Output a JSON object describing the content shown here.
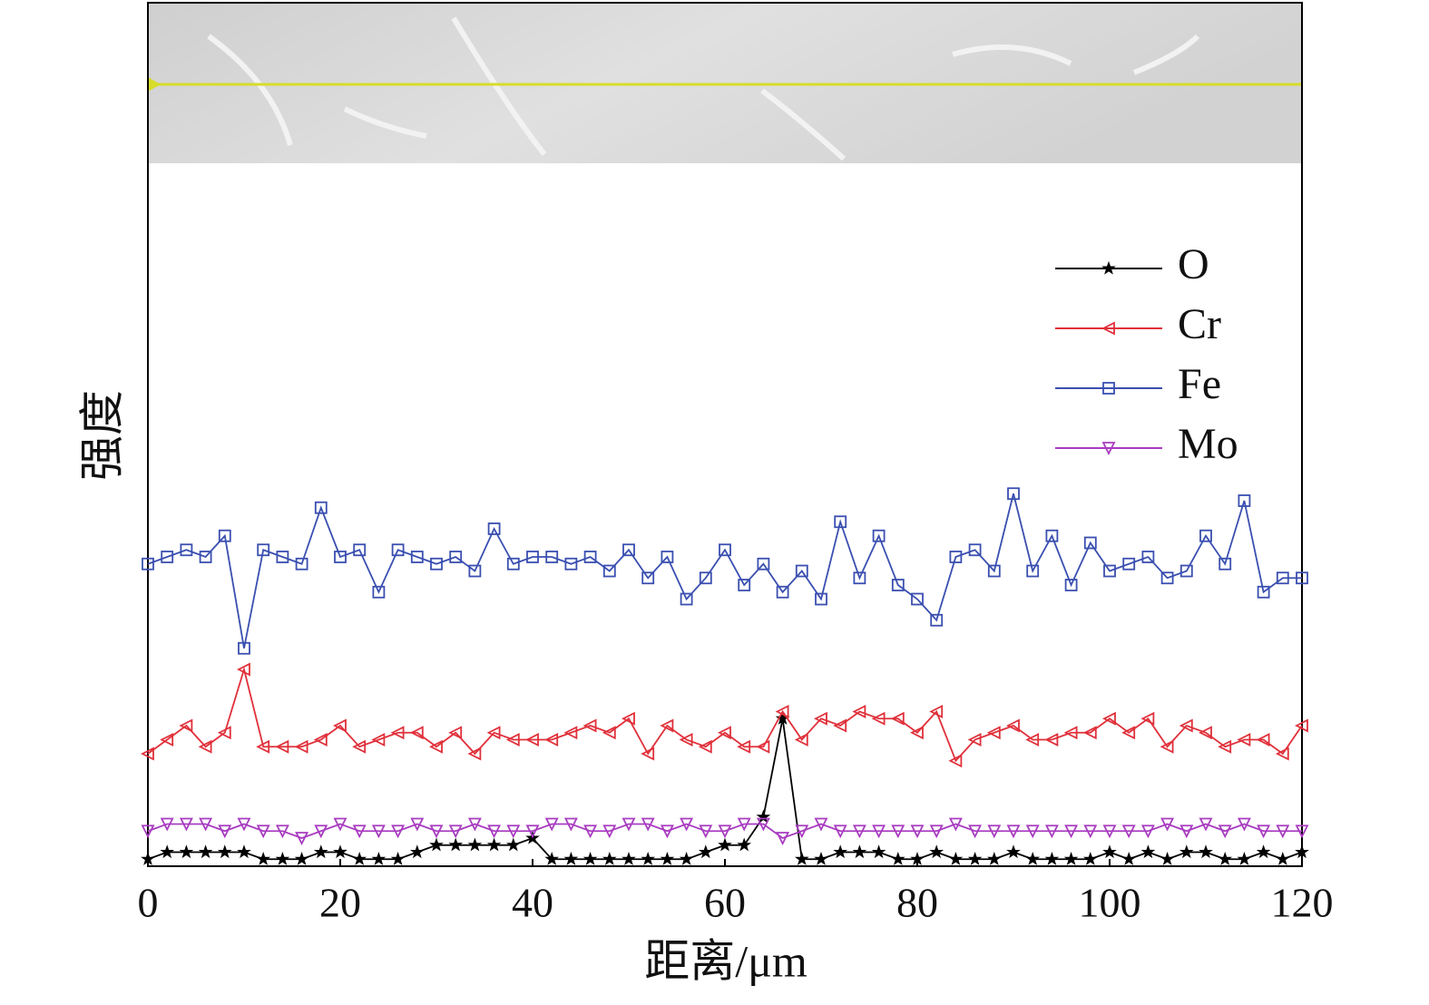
{
  "chart_data": {
    "type": "line",
    "xlabel": "距离/μm",
    "ylabel": "强度",
    "xlim": [
      0,
      120
    ],
    "xticks": [
      0,
      20,
      40,
      60,
      80,
      100,
      120
    ],
    "ylim": [
      0,
      100
    ],
    "x": [
      0,
      2,
      4,
      6,
      8,
      10,
      12,
      14,
      16,
      18,
      20,
      22,
      24,
      26,
      28,
      30,
      32,
      34,
      36,
      38,
      40,
      42,
      44,
      46,
      48,
      50,
      52,
      54,
      56,
      58,
      60,
      62,
      64,
      66,
      68,
      70,
      72,
      74,
      76,
      78,
      80,
      82,
      84,
      86,
      88,
      90,
      92,
      94,
      96,
      98,
      100,
      102,
      104,
      106,
      108,
      110,
      112,
      114,
      116,
      118,
      120
    ],
    "legend": "upper right",
    "series": [
      {
        "name": "O",
        "color": "#000000",
        "marker": "star",
        "values": [
          1,
          2,
          2,
          2,
          2,
          2,
          1,
          1,
          1,
          2,
          2,
          1,
          1,
          1,
          2,
          3,
          3,
          3,
          3,
          3,
          4,
          1,
          1,
          1,
          1,
          1,
          1,
          1,
          1,
          2,
          3,
          3,
          7,
          21,
          1,
          1,
          2,
          2,
          2,
          1,
          1,
          2,
          1,
          1,
          1,
          2,
          1,
          1,
          1,
          1,
          2,
          1,
          2,
          1,
          2,
          2,
          1,
          1,
          2,
          1,
          2
        ]
      },
      {
        "name": "Cr",
        "color": "#e0303a",
        "marker": "triangle-left",
        "values": [
          16,
          18,
          20,
          17,
          19,
          28,
          17,
          17,
          17,
          18,
          20,
          17,
          18,
          19,
          19,
          17,
          19,
          16,
          19,
          18,
          18,
          18,
          19,
          20,
          19,
          21,
          16,
          20,
          18,
          17,
          19,
          17,
          17,
          22,
          18,
          21,
          20,
          22,
          21,
          21,
          19,
          22,
          15,
          18,
          19,
          20,
          18,
          18,
          19,
          19,
          21,
          19,
          21,
          17,
          20,
          19,
          17,
          18,
          18,
          16,
          20
        ]
      },
      {
        "name": "Fe",
        "color": "#3a4fb0",
        "marker": "square",
        "values": [
          43,
          44,
          45,
          44,
          47,
          31,
          45,
          44,
          43,
          51,
          44,
          45,
          39,
          45,
          44,
          43,
          44,
          42,
          48,
          43,
          44,
          44,
          43,
          44,
          42,
          45,
          41,
          44,
          38,
          41,
          45,
          40,
          43,
          39,
          42,
          38,
          49,
          41,
          47,
          40,
          38,
          35,
          44,
          45,
          42,
          53,
          42,
          47,
          40,
          46,
          42,
          43,
          44,
          41,
          42,
          47,
          43,
          52,
          39,
          41,
          41
        ]
      },
      {
        "name": "Mo",
        "color": "#a83cc0",
        "marker": "triangle-down",
        "values": [
          5,
          6,
          6,
          6,
          5,
          6,
          5,
          5,
          4,
          5,
          6,
          5,
          5,
          5,
          6,
          5,
          5,
          6,
          5,
          5,
          5,
          6,
          6,
          5,
          5,
          6,
          6,
          5,
          6,
          5,
          5,
          6,
          6,
          4,
          5,
          6,
          5,
          5,
          5,
          5,
          5,
          5,
          6,
          5,
          5,
          5,
          5,
          5,
          5,
          5,
          5,
          5,
          5,
          6,
          5,
          6,
          5,
          6,
          5,
          5,
          5
        ]
      }
    ]
  }
}
